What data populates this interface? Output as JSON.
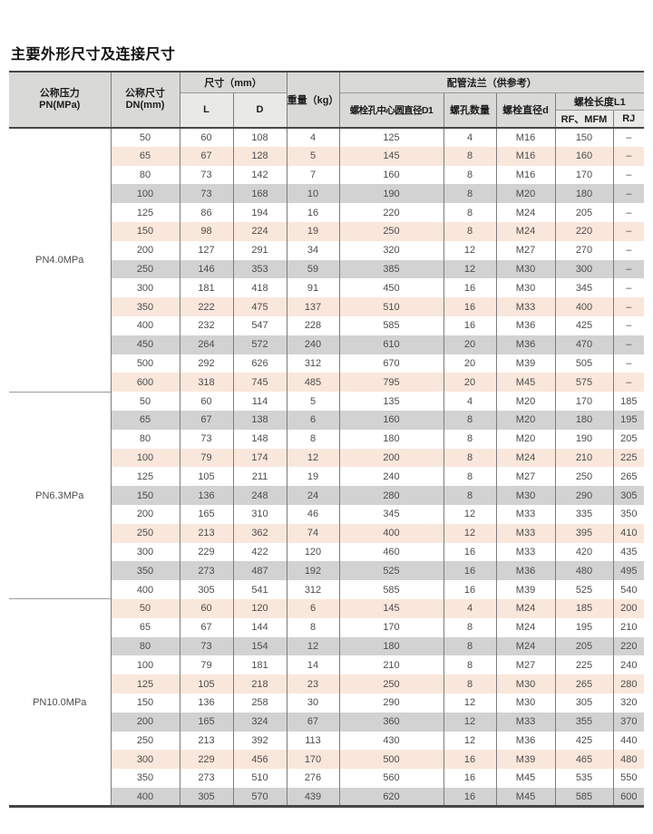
{
  "page": {
    "title": "主要外形尺寸及连接尺寸"
  },
  "colors": {
    "header_bg": "#d9d9d7",
    "header_sub_bg": "#e9e9e7",
    "row_pink": "#fae7db",
    "row_gray": "#d2d2d2",
    "grid_line": "#7d7d7d",
    "heavy_line": "#464646"
  },
  "table": {
    "headers": {
      "pressure_l1": "公称压力",
      "pressure_l2": "PN(MPa)",
      "dn_l1": "公称尺寸",
      "dn_l2": "DN(mm)",
      "size_group": "尺寸（mm）",
      "col_l": "L",
      "col_d": "D",
      "weight": "重量（kg）",
      "flange_group": "配管法兰（供参考）",
      "bolt_circle": "螺栓孔中心圆直径D1",
      "bolt_holes": "螺孔数量",
      "bolt_dia": "螺栓直径d",
      "bolt_len_group": "螺栓长度L1",
      "bolt_len_rf": "RF、MFM",
      "bolt_len_rj": "RJ"
    },
    "sections": [
      {
        "pressure": "PN4.0MPa",
        "rows": [
          [
            "50",
            "60",
            "108",
            "4",
            "125",
            "4",
            "M16",
            "150",
            "–"
          ],
          [
            "65",
            "67",
            "128",
            "5",
            "145",
            "8",
            "M16",
            "160",
            "–"
          ],
          [
            "80",
            "73",
            "142",
            "7",
            "160",
            "8",
            "M16",
            "170",
            "–"
          ],
          [
            "100",
            "73",
            "168",
            "10",
            "190",
            "8",
            "M20",
            "180",
            "–"
          ],
          [
            "125",
            "86",
            "194",
            "16",
            "220",
            "8",
            "M24",
            "205",
            "–"
          ],
          [
            "150",
            "98",
            "224",
            "19",
            "250",
            "8",
            "M24",
            "220",
            "–"
          ],
          [
            "200",
            "127",
            "291",
            "34",
            "320",
            "12",
            "M27",
            "270",
            "–"
          ],
          [
            "250",
            "146",
            "353",
            "59",
            "385",
            "12",
            "M30",
            "300",
            "–"
          ],
          [
            "300",
            "181",
            "418",
            "91",
            "450",
            "16",
            "M30",
            "345",
            "–"
          ],
          [
            "350",
            "222",
            "475",
            "137",
            "510",
            "16",
            "M33",
            "400",
            "–"
          ],
          [
            "400",
            "232",
            "547",
            "228",
            "585",
            "16",
            "M36",
            "425",
            "–"
          ],
          [
            "450",
            "264",
            "572",
            "240",
            "610",
            "20",
            "M36",
            "470",
            "–"
          ],
          [
            "500",
            "292",
            "626",
            "312",
            "670",
            "20",
            "M39",
            "505",
            "–"
          ],
          [
            "600",
            "318",
            "745",
            "485",
            "795",
            "20",
            "M45",
            "575",
            "–"
          ]
        ]
      },
      {
        "pressure": "PN6.3MPa",
        "rows": [
          [
            "50",
            "60",
            "114",
            "5",
            "135",
            "4",
            "M20",
            "170",
            "185"
          ],
          [
            "65",
            "67",
            "138",
            "6",
            "160",
            "8",
            "M20",
            "180",
            "195"
          ],
          [
            "80",
            "73",
            "148",
            "8",
            "180",
            "8",
            "M20",
            "190",
            "205"
          ],
          [
            "100",
            "79",
            "174",
            "12",
            "200",
            "8",
            "M24",
            "210",
            "225"
          ],
          [
            "125",
            "105",
            "211",
            "19",
            "240",
            "8",
            "M27",
            "250",
            "265"
          ],
          [
            "150",
            "136",
            "248",
            "24",
            "280",
            "8",
            "M30",
            "290",
            "305"
          ],
          [
            "200",
            "165",
            "310",
            "46",
            "345",
            "12",
            "M33",
            "335",
            "350"
          ],
          [
            "250",
            "213",
            "362",
            "74",
            "400",
            "12",
            "M33",
            "395",
            "410"
          ],
          [
            "300",
            "229",
            "422",
            "120",
            "460",
            "16",
            "M33",
            "420",
            "435"
          ],
          [
            "350",
            "273",
            "487",
            "192",
            "525",
            "16",
            "M36",
            "480",
            "495"
          ],
          [
            "400",
            "305",
            "541",
            "312",
            "585",
            "16",
            "M39",
            "525",
            "540"
          ]
        ]
      },
      {
        "pressure": "PN10.0MPa",
        "rows": [
          [
            "50",
            "60",
            "120",
            "6",
            "145",
            "4",
            "M24",
            "185",
            "200"
          ],
          [
            "65",
            "67",
            "144",
            "8",
            "170",
            "8",
            "M24",
            "195",
            "210"
          ],
          [
            "80",
            "73",
            "154",
            "12",
            "180",
            "8",
            "M24",
            "205",
            "220"
          ],
          [
            "100",
            "79",
            "181",
            "14",
            "210",
            "8",
            "M27",
            "225",
            "240"
          ],
          [
            "125",
            "105",
            "218",
            "23",
            "250",
            "8",
            "M30",
            "265",
            "280"
          ],
          [
            "150",
            "136",
            "258",
            "30",
            "290",
            "12",
            "M30",
            "305",
            "320"
          ],
          [
            "200",
            "165",
            "324",
            "67",
            "360",
            "12",
            "M33",
            "355",
            "370"
          ],
          [
            "250",
            "213",
            "392",
            "113",
            "430",
            "12",
            "M36",
            "425",
            "440"
          ],
          [
            "300",
            "229",
            "456",
            "170",
            "500",
            "16",
            "M39",
            "465",
            "480"
          ],
          [
            "350",
            "273",
            "510",
            "276",
            "560",
            "16",
            "M45",
            "535",
            "550"
          ],
          [
            "400",
            "305",
            "570",
            "439",
            "620",
            "16",
            "M45",
            "585",
            "600"
          ]
        ]
      }
    ]
  }
}
